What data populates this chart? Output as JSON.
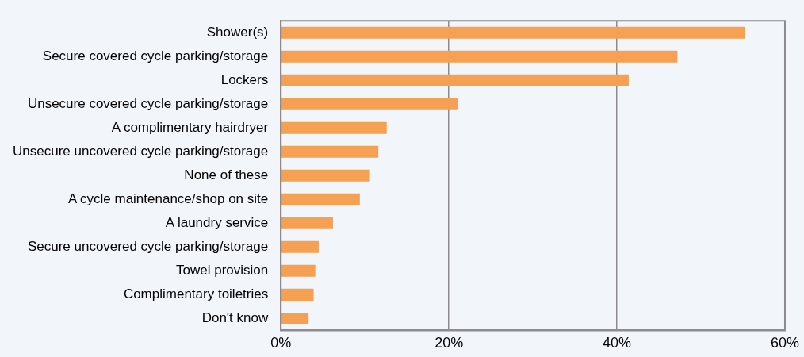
{
  "chart_data": {
    "type": "bar",
    "orientation": "horizontal",
    "categories": [
      "Shower(s)",
      "Secure covered cycle parking/storage",
      "Lockers",
      "Unsecure covered cycle parking/storage",
      "A complimentary hairdryer",
      "Unsecure uncovered cycle parking/storage",
      "None of these",
      "A cycle maintenance/shop on site",
      "A laundry service",
      "Secure uncovered cycle parking/storage",
      "Towel provision",
      "Complimentary toiletries",
      "Don't know"
    ],
    "values": [
      55.2,
      47.2,
      41.4,
      21.1,
      12.6,
      11.6,
      10.6,
      9.4,
      6.2,
      4.5,
      4.1,
      3.9,
      3.3
    ],
    "color": "#f5a052",
    "xlim": [
      0,
      60
    ],
    "xticks": [
      {
        "value": 0,
        "label": "0%"
      },
      {
        "value": 20,
        "label": "20%"
      },
      {
        "value": 40,
        "label": "40%"
      },
      {
        "value": 60,
        "label": "60%"
      }
    ],
    "grid": "x",
    "legend": false
  }
}
